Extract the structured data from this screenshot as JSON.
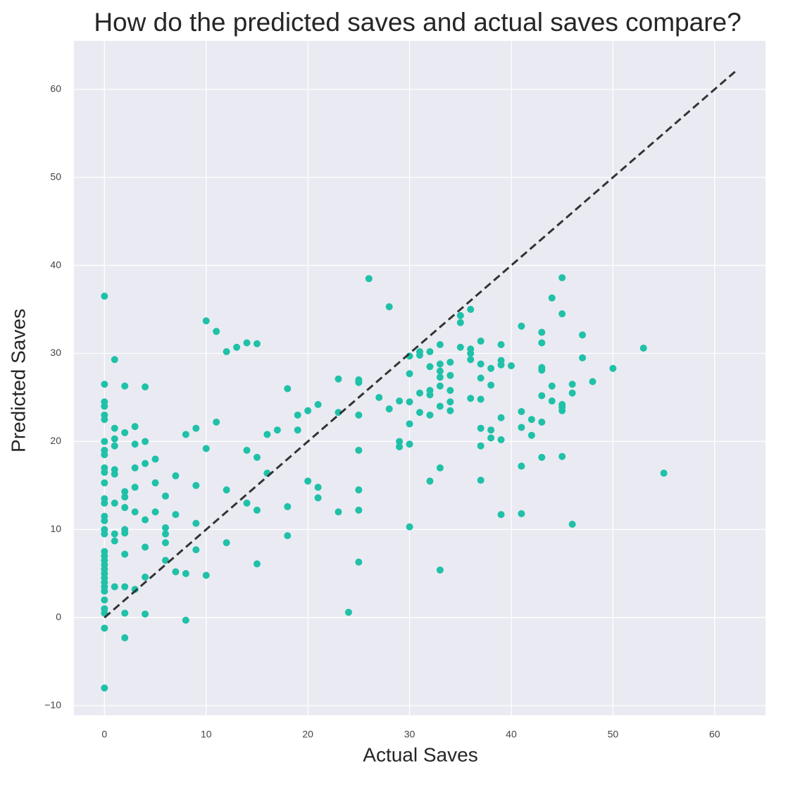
{
  "chart_data": {
    "type": "scatter",
    "title": "How do the predicted saves and actual saves compare?",
    "xlabel": "Actual Saves",
    "ylabel": "Predicted Saves",
    "color": "#1fc1a8",
    "background": "#eaeaf2",
    "grid": true,
    "xlim": [
      -3,
      65
    ],
    "ylim": [
      -11.1,
      65.5
    ],
    "xticks": [
      0,
      10,
      20,
      30,
      40,
      50,
      60
    ],
    "yticks": [
      {
        "value": -10,
        "label": "−10"
      },
      0,
      10,
      20,
      30,
      40,
      50,
      60
    ],
    "reference_line": {
      "x": [
        0,
        62
      ],
      "y": [
        0,
        62
      ],
      "color": "#333333"
    },
    "x": [
      0,
      0,
      0,
      0,
      0,
      0,
      0,
      0,
      0,
      0,
      0,
      0,
      0,
      0,
      0,
      0,
      0,
      0,
      0,
      0,
      0,
      0,
      0,
      0,
      0,
      0,
      0,
      0,
      0,
      0,
      0,
      0,
      0,
      1,
      1,
      1,
      1,
      1,
      1,
      1,
      1,
      1,
      1,
      2,
      2,
      2,
      2,
      2,
      2,
      2,
      2,
      2,
      2,
      2,
      3,
      3,
      3,
      3,
      3,
      3,
      4,
      4,
      4,
      4,
      4,
      4,
      4,
      5,
      5,
      5,
      6,
      6,
      6,
      6,
      6,
      7,
      7,
      7,
      8,
      8,
      8,
      9,
      9,
      9,
      9,
      10,
      10,
      10,
      11,
      11,
      12,
      12,
      12,
      13,
      14,
      14,
      14,
      15,
      15,
      15,
      15,
      16,
      16,
      17,
      18,
      18,
      18,
      19,
      19,
      20,
      20,
      21,
      21,
      21,
      23,
      23,
      23,
      24,
      25,
      25,
      25,
      25,
      25,
      25,
      25,
      26,
      27,
      28,
      28,
      29,
      29,
      29,
      30,
      30,
      30,
      30,
      30,
      30,
      31,
      31,
      31,
      31,
      32,
      32,
      32,
      32,
      32,
      32,
      33,
      33,
      33,
      33,
      33,
      33,
      33,
      33,
      34,
      34,
      34,
      34,
      34,
      35,
      35,
      35,
      36,
      36,
      36,
      36,
      36,
      37,
      37,
      37,
      37,
      37,
      37,
      37,
      38,
      38,
      38,
      38,
      39,
      39,
      39,
      39,
      39,
      39,
      40,
      41,
      41,
      41,
      41,
      41,
      42,
      42,
      43,
      43,
      43,
      43,
      43,
      43,
      43,
      44,
      44,
      44,
      45,
      45,
      45,
      45,
      45,
      45,
      46,
      46,
      46,
      47,
      47,
      48,
      50,
      53,
      55
    ],
    "values": [
      36.5,
      26.5,
      24.5,
      24,
      23,
      22.5,
      20,
      19,
      18.5,
      17,
      16.5,
      15.3,
      13.5,
      13,
      11.5,
      11,
      10,
      9.5,
      7.5,
      7,
      6.5,
      6,
      5.5,
      5,
      4.5,
      4,
      3.5,
      3,
      2,
      1,
      0.5,
      -1.2,
      -8,
      29.3,
      21.5,
      20.3,
      19.5,
      16.8,
      16.3,
      13,
      9.5,
      8.7,
      3.5,
      26.3,
      21,
      14.3,
      13.7,
      12.5,
      10,
      9.6,
      7.2,
      3.5,
      0.5,
      -2.3,
      21.7,
      19.7,
      17,
      14.8,
      12,
      3.2,
      26.2,
      20,
      17.5,
      11.1,
      8,
      4.6,
      0.4,
      18,
      15.3,
      12,
      13.8,
      10.2,
      9.5,
      8.5,
      6.5,
      16.1,
      11.7,
      5.2,
      20.8,
      5,
      -0.3,
      21.5,
      15,
      10.7,
      7.7,
      33.7,
      19.2,
      4.8,
      32.5,
      22.2,
      30.2,
      14.5,
      8.5,
      30.7,
      31.2,
      19,
      13,
      31.1,
      18.2,
      12.2,
      6.1,
      20.8,
      16.4,
      21.3,
      26,
      12.6,
      9.3,
      23,
      21.3,
      23.5,
      15.5,
      24.2,
      14.8,
      13.6,
      27.1,
      23.3,
      12,
      0.6,
      27,
      26.7,
      23,
      19,
      14.5,
      12.2,
      6.3,
      38.5,
      25,
      35.3,
      23.7,
      24.6,
      20,
      19.4,
      29.7,
      27.7,
      24.5,
      22,
      19.7,
      10.3,
      30.2,
      29.8,
      25.5,
      23.3,
      30.2,
      28.5,
      25.8,
      25.3,
      23,
      15.5,
      31,
      28.8,
      28,
      27.3,
      26.3,
      24,
      17,
      5.4,
      29,
      27.5,
      25.8,
      24.5,
      23.5,
      34.3,
      33.5,
      30.7,
      35,
      30.5,
      30,
      29.3,
      24.9,
      31.4,
      28.8,
      27.2,
      24.8,
      21.5,
      19.5,
      15.6,
      28.3,
      26.4,
      21.3,
      20.4,
      31,
      29.2,
      28.7,
      22.7,
      20.2,
      11.7,
      28.6,
      33.1,
      23.4,
      21.6,
      17.2,
      11.8,
      22.5,
      20.7,
      32.4,
      31.2,
      28.4,
      28.1,
      25.2,
      22.2,
      18.2,
      36.3,
      26.3,
      24.6,
      38.6,
      34.5,
      24.2,
      23.9,
      23.5,
      18.3,
      26.5,
      25.5,
      10.6,
      32.1,
      29.5,
      26.8,
      28.3,
      30.6,
      16.4
    ]
  }
}
